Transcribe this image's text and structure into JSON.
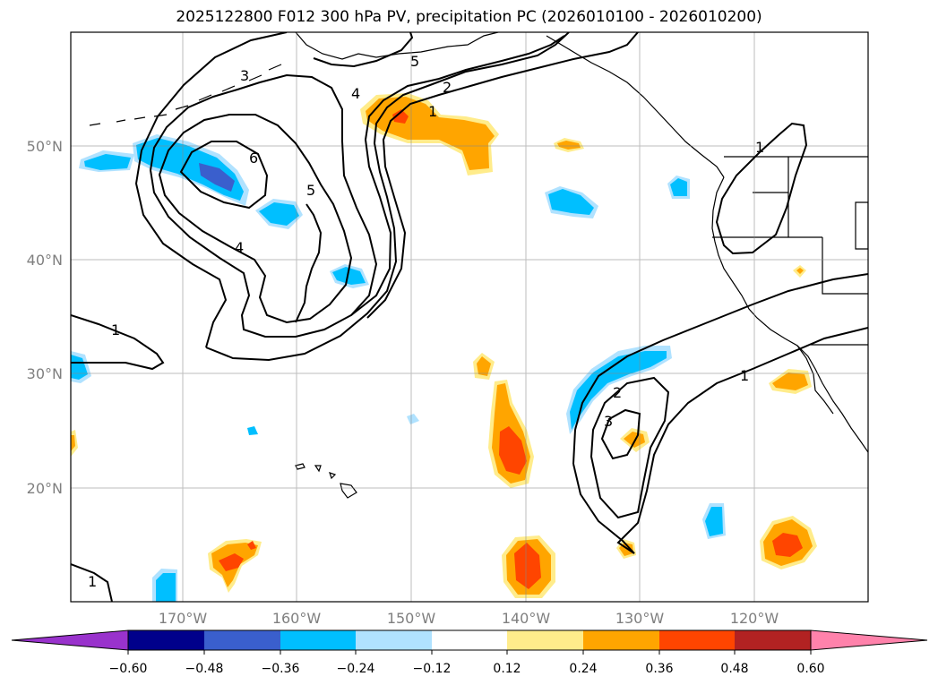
{
  "title": "2025122800 F012 300 hPa PV, precipitation PC (2026010100 - 2026010200)",
  "lat_labels": [
    "50°N",
    "40°N",
    "30°N",
    "20°N"
  ],
  "lon_labels": [
    "170°W",
    "160°W",
    "150°W",
    "140°W",
    "130°W",
    "120°W"
  ],
  "pv_contour_labels": [
    "3",
    "5",
    "4",
    "2",
    "1",
    "6",
    "5",
    "4",
    "1",
    "2",
    "3",
    "1",
    "1",
    "1"
  ],
  "colorbar": {
    "tick_labels": [
      "−0.60",
      "−0.48",
      "−0.36",
      "−0.24",
      "−0.12",
      "0.12",
      "0.24",
      "0.36",
      "0.48",
      "0.60"
    ],
    "colors": [
      "#9932cc",
      "#00008b",
      "#3a5fcd",
      "#00bfff",
      "#b0e2ff",
      "#ffffff",
      "#ffec8b",
      "#ffa500",
      "#ff4500",
      "#b22222",
      "#ff82ab"
    ]
  }
}
